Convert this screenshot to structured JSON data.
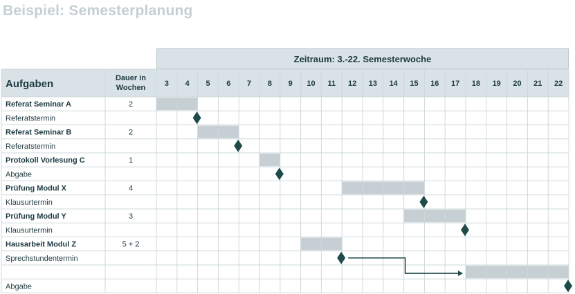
{
  "title": "Beispiel: Semesterplanung",
  "zeitraum_label": "Zeitraum: 3.-22. Semesterwoche",
  "header": {
    "aufgaben": "Aufgaben",
    "dauer_line1": "Dauer in",
    "dauer_line2": "Wochen"
  },
  "weeks": [
    3,
    4,
    5,
    6,
    7,
    8,
    9,
    10,
    11,
    12,
    13,
    14,
    15,
    16,
    17,
    18,
    19,
    20,
    21,
    22
  ],
  "rows": [
    {
      "label": "Referat Seminar A",
      "bold": true,
      "duration": "2"
    },
    {
      "label": "Referatstermin",
      "bold": false,
      "duration": ""
    },
    {
      "label": "Referat Seminar B",
      "bold": true,
      "duration": "2"
    },
    {
      "label": "Referatstermin",
      "bold": false,
      "duration": ""
    },
    {
      "label": "Protokoll Vorlesung C",
      "bold": true,
      "duration": "1"
    },
    {
      "label": "Abgabe",
      "bold": false,
      "duration": ""
    },
    {
      "label": "Prüfung Modul X",
      "bold": true,
      "duration": "4"
    },
    {
      "label": "Klausurtermin",
      "bold": false,
      "duration": ""
    },
    {
      "label": "Prüfung Modul Y",
      "bold": true,
      "duration": "3"
    },
    {
      "label": "Klausurtermin",
      "bold": false,
      "duration": ""
    },
    {
      "label": "Hausarbeit Modul Z",
      "bold": true,
      "duration": "5 + 2"
    },
    {
      "label": "Sprechstundentermin",
      "bold": false,
      "duration": ""
    },
    {
      "label": "",
      "bold": false,
      "duration": ""
    },
    {
      "label": "Abgabe",
      "bold": false,
      "duration": ""
    }
  ],
  "bars": [
    {
      "row": 0,
      "start_week": 3,
      "end_week": 4
    },
    {
      "row": 2,
      "start_week": 5,
      "end_week": 6
    },
    {
      "row": 4,
      "start_week": 8,
      "end_week": 8
    },
    {
      "row": 6,
      "start_week": 12,
      "end_week": 15
    },
    {
      "row": 8,
      "start_week": 15,
      "end_week": 17
    },
    {
      "row": 10,
      "start_week": 10,
      "end_week": 11
    },
    {
      "row": 12,
      "start_week": 18,
      "end_week": 22
    }
  ],
  "milestones": [
    {
      "row": 1,
      "at_week_end": 4
    },
    {
      "row": 3,
      "at_week_end": 6
    },
    {
      "row": 5,
      "at_week_end": 8
    },
    {
      "row": 7,
      "at_week_end": 15
    },
    {
      "row": 9,
      "at_week_end": 17
    },
    {
      "row": 11,
      "at_week_end": 11
    },
    {
      "row": 13,
      "at_week_end": 22
    }
  ],
  "colors": {
    "bar": "#c6d0d4",
    "milestone": "#1f4a4a",
    "grid": "#cfd8db",
    "header_bg": "#d9e2e6",
    "text": "#1e3a40"
  }
}
